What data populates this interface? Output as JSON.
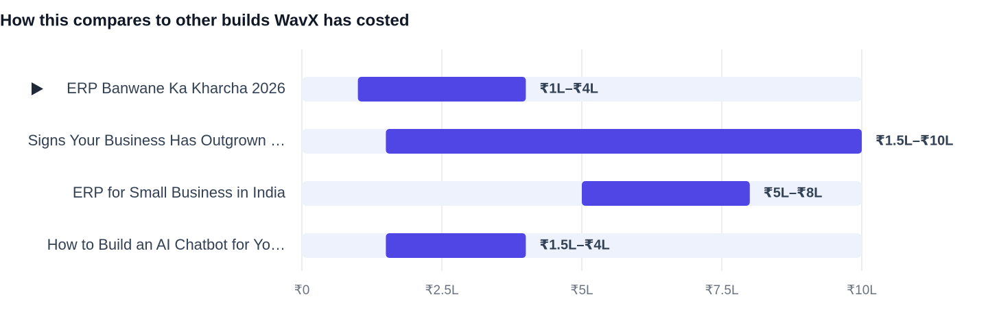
{
  "chart_data": {
    "type": "range-bar",
    "title": "How this compares to other builds WavX has costed",
    "categories": [
      "ERP Banwane Ka Kharcha 2026",
      "Signs Your Business Has Outgrown …",
      "ERP for Small Business in India",
      "How to Build an AI Chatbot for Yo…"
    ],
    "low": [
      1,
      1.5,
      5,
      1.5
    ],
    "high": [
      4,
      10,
      8,
      4
    ],
    "value_labels": [
      "₹1L–₹4L",
      "₹1.5L–₹10L",
      "₹5L–₹8L",
      "₹1.5L–₹4L"
    ],
    "color": "#4f46e5",
    "track_color": "#eef2fd",
    "xlim": [
      0,
      10
    ],
    "xticks": [
      {
        "value": 0,
        "label": "₹0"
      },
      {
        "value": 2.5,
        "label": "₹2.5L"
      },
      {
        "value": 5,
        "label": "₹5L"
      },
      {
        "value": 7.5,
        "label": "₹7.5L"
      },
      {
        "value": 10,
        "label": "₹10L"
      }
    ],
    "grid": true
  }
}
